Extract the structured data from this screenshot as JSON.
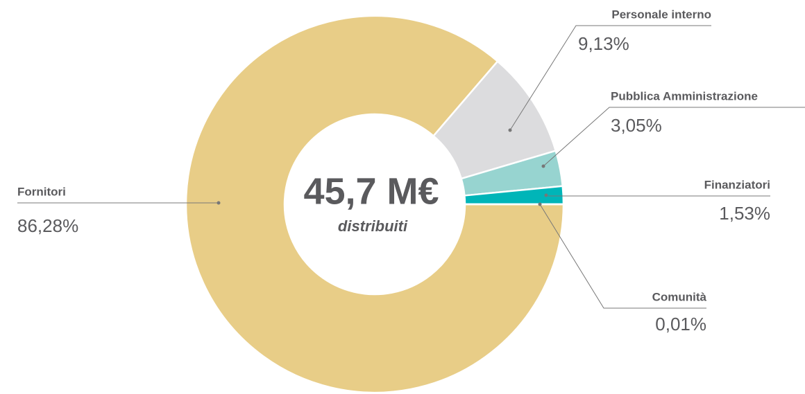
{
  "chart_data": {
    "type": "pie",
    "center_title": "45,7 M€",
    "center_subtitle": "distribuiti",
    "categories": [
      "Fornitori",
      "Personale interno",
      "Pubblica Amministrazione",
      "Finanziatori",
      "Comunità"
    ],
    "values": [
      86.28,
      9.13,
      3.05,
      1.53,
      0.01
    ],
    "value_labels": [
      "86,28%",
      "9,13%",
      "3,05%",
      "1,53%",
      "0,01%"
    ],
    "colors": [
      "#e8cd87",
      "#dcdcde",
      "#97d4d0",
      "#00b5b8",
      "#0e6e6e"
    ]
  }
}
